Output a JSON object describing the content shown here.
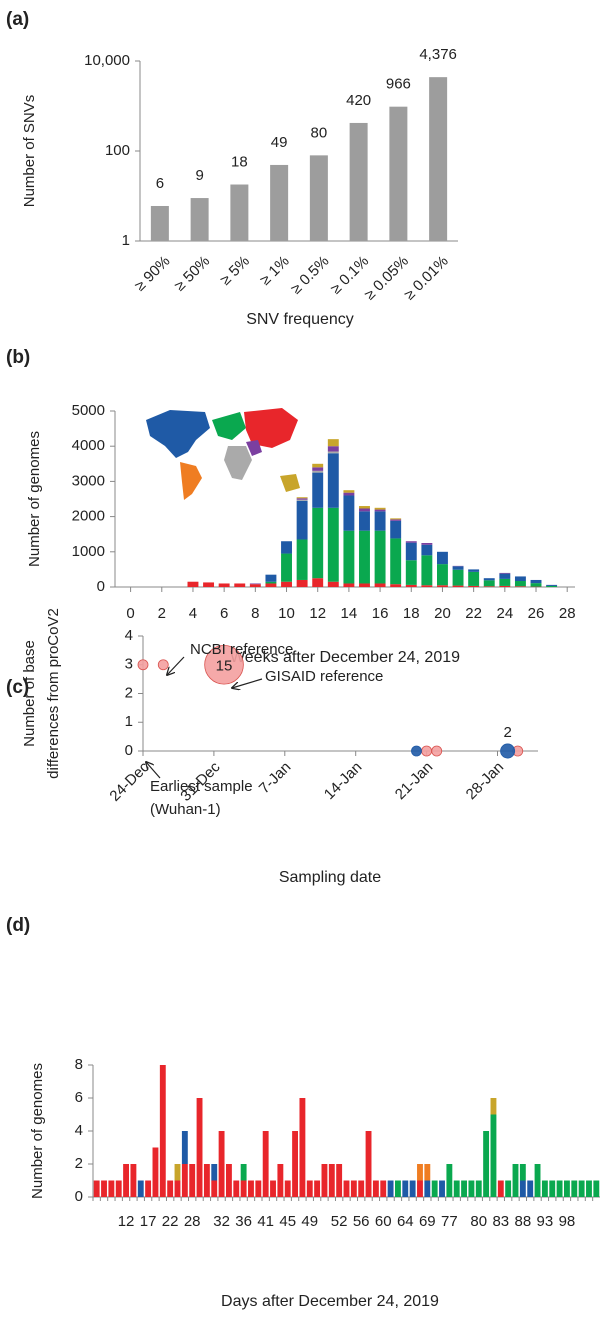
{
  "chart_data": [
    {
      "type": "bar",
      "label": "(a)",
      "ylabel": "Number of SNVs",
      "xlabel": "SNV frequency",
      "categories": [
        "≥ 90%",
        "≥ 50%",
        "≥ 5%",
        "≥ 1%",
        "≥ 0.5%",
        "≥ 0.1%",
        "≥ 0.05%",
        "≥ 0.01%"
      ],
      "values": [
        6,
        9,
        18,
        49,
        80,
        420,
        966,
        4376
      ],
      "value_labels": [
        "6",
        "9",
        "18",
        "49",
        "80",
        "420",
        "966",
        "4,376"
      ],
      "color": "#9d9d9d",
      "yscale": "log",
      "ylim": [
        1,
        10000
      ],
      "yticks": [
        1,
        100,
        {
          "value": 10000,
          "label": "10,000"
        }
      ]
    },
    {
      "type": "stacked_bar",
      "label": "(b)",
      "ylabel": "Number of genomes",
      "xlabel": "Weeks after December 24, 2019",
      "x": [
        4,
        5,
        6,
        7,
        8,
        9,
        10,
        11,
        12,
        13,
        14,
        15,
        16,
        17,
        18,
        19,
        20,
        21,
        22,
        23,
        24,
        25,
        26,
        27
      ],
      "series": [
        {
          "color": "#e8262b",
          "values": [
            150,
            130,
            100,
            100,
            80,
            100,
            150,
            200,
            250,
            150,
            100,
            100,
            100,
            80,
            60,
            50,
            50,
            40,
            30,
            20,
            30,
            20,
            10,
            0
          ]
        },
        {
          "color": "#0aa84f",
          "values": [
            0,
            0,
            0,
            0,
            0,
            50,
            800,
            1150,
            2000,
            2100,
            1500,
            1500,
            1500,
            1300,
            700,
            850,
            600,
            450,
            400,
            170,
            200,
            150,
            100,
            30
          ]
        },
        {
          "color": "#1f5aa6",
          "values": [
            0,
            0,
            0,
            0,
            0,
            200,
            350,
            1100,
            1000,
            1550,
            1000,
            550,
            550,
            500,
            500,
            300,
            350,
            100,
            70,
            60,
            150,
            130,
            90,
            30
          ]
        },
        {
          "color": "#aaaaaa",
          "values": [
            0,
            0,
            0,
            0,
            0,
            0,
            0,
            30,
            50,
            50,
            0,
            0,
            0,
            0,
            0,
            0,
            0,
            0,
            0,
            0,
            0,
            0,
            0,
            0
          ]
        },
        {
          "color": "#7b3fa0",
          "values": [
            0,
            0,
            0,
            0,
            20,
            0,
            0,
            40,
            100,
            150,
            80,
            80,
            50,
            40,
            40,
            50,
            0,
            10,
            0,
            0,
            20,
            0,
            0,
            0
          ]
        },
        {
          "color": "#c8a52b",
          "values": [
            0,
            0,
            0,
            0,
            0,
            0,
            0,
            30,
            100,
            200,
            70,
            70,
            50,
            30,
            0,
            0,
            0,
            0,
            0,
            0,
            0,
            0,
            0,
            0
          ]
        }
      ],
      "xlim": [
        -1,
        28.5
      ],
      "xticks": [
        0,
        2,
        4,
        6,
        8,
        10,
        12,
        14,
        16,
        18,
        20,
        22,
        24,
        26,
        28
      ],
      "ylim": [
        0,
        5000
      ],
      "yticks": [
        0,
        1000,
        2000,
        3000,
        4000,
        5000
      ]
    },
    {
      "type": "bubble",
      "label": "(c)",
      "ylabel": [
        "Number of base",
        "differences from proCoV2"
      ],
      "xlabel": "Sampling date",
      "series": [
        {
          "color": "#f4a0a0",
          "x": [
            "24-Dec",
            "26-Dec",
            "1-Jan",
            "21-Jan",
            "22-Jan",
            "30-Jan"
          ],
          "values": [
            3,
            3,
            3,
            0,
            0,
            0
          ],
          "sizes": [
            1,
            1,
            15,
            1,
            1,
            1
          ]
        },
        {
          "color": "#1f5aa6",
          "x": [
            "20-Jan",
            "29-Jan"
          ],
          "values": [
            0,
            0
          ],
          "sizes": [
            1,
            2
          ]
        }
      ],
      "annotations": [
        "NCBI reference",
        "GISAID reference",
        "Earliest sample",
        "(Wuhan-1)"
      ],
      "xlim": [
        "24-Dec",
        "1-Feb"
      ],
      "xticks": [
        "24-Dec",
        "31-Dec",
        "7-Jan",
        "14-Jan",
        "21-Jan",
        "28-Jan"
      ],
      "ylim": [
        0,
        4
      ],
      "yticks": [
        0,
        1,
        2,
        3,
        4
      ]
    },
    {
      "type": "stacked_bar",
      "label": "(d)",
      "ylabel": "Number of genomes",
      "xlabel": "Days after December 24, 2019",
      "categories": [
        null,
        null,
        null,
        null,
        12,
        null,
        null,
        17,
        null,
        null,
        22,
        null,
        null,
        28,
        null,
        null,
        null,
        32,
        null,
        null,
        36,
        null,
        null,
        41,
        null,
        null,
        45,
        null,
        null,
        49,
        null,
        null,
        null,
        52,
        null,
        null,
        56,
        null,
        null,
        60,
        null,
        null,
        64,
        null,
        null,
        69,
        null,
        null,
        77,
        null,
        null,
        null,
        80,
        null,
        null,
        83,
        null,
        null,
        88,
        null,
        null,
        93,
        null,
        null,
        98,
        null,
        null,
        null,
        null
      ],
      "series": [
        {
          "color": "#e8262b",
          "values": [
            1,
            1,
            1,
            1,
            2,
            2,
            0,
            1,
            3,
            8,
            1,
            1,
            2,
            2,
            6,
            2,
            1,
            4,
            2,
            1,
            1,
            1,
            1,
            4,
            1,
            2,
            1,
            4,
            6,
            1,
            1,
            2,
            2,
            2,
            1,
            1,
            1,
            4,
            1,
            1,
            0,
            0,
            0,
            0,
            1,
            0,
            0,
            0,
            0,
            0,
            0,
            0,
            0,
            0,
            0,
            1,
            0,
            0,
            0,
            0,
            0,
            0,
            0,
            0,
            0,
            0,
            0,
            0,
            0
          ]
        },
        {
          "color": "#1f5aa6",
          "values": [
            0,
            0,
            0,
            0,
            0,
            0,
            1,
            0,
            0,
            0,
            0,
            0,
            2,
            0,
            0,
            0,
            1,
            0,
            0,
            0,
            0,
            0,
            0,
            0,
            0,
            0,
            0,
            0,
            0,
            0,
            0,
            0,
            0,
            0,
            0,
            0,
            0,
            0,
            0,
            0,
            1,
            0,
            1,
            1,
            0,
            1,
            0,
            1,
            0,
            0,
            0,
            0,
            0,
            0,
            0,
            0,
            0,
            0,
            1,
            1,
            0,
            0,
            0,
            0,
            0,
            0,
            0,
            0,
            0
          ]
        },
        {
          "color": "#0aa84f",
          "values": [
            0,
            0,
            0,
            0,
            0,
            0,
            0,
            0,
            0,
            0,
            0,
            0,
            0,
            0,
            0,
            0,
            0,
            0,
            0,
            0,
            1,
            0,
            0,
            0,
            0,
            0,
            0,
            0,
            0,
            0,
            0,
            0,
            0,
            0,
            0,
            0,
            0,
            0,
            0,
            0,
            0,
            1,
            0,
            0,
            0,
            0,
            1,
            0,
            2,
            1,
            1,
            1,
            1,
            4,
            5,
            0,
            1,
            2,
            1,
            0,
            2,
            1,
            1,
            1,
            1,
            1,
            1,
            1,
            1
          ]
        },
        {
          "color": "#c8a52b",
          "values": [
            0,
            0,
            0,
            0,
            0,
            0,
            0,
            0,
            0,
            0,
            0,
            1,
            0,
            0,
            0,
            0,
            0,
            0,
            0,
            0,
            0,
            0,
            0,
            0,
            0,
            0,
            0,
            0,
            0,
            0,
            0,
            0,
            0,
            0,
            0,
            0,
            0,
            0,
            0,
            0,
            0,
            0,
            0,
            0,
            0,
            0,
            0,
            0,
            0,
            0,
            0,
            0,
            0,
            0,
            1,
            0,
            0,
            0,
            0,
            0,
            0,
            0,
            0,
            0,
            0,
            0,
            0,
            0,
            0
          ]
        },
        {
          "color": "#ef7d22",
          "values": [
            0,
            0,
            0,
            0,
            0,
            0,
            0,
            0,
            0,
            0,
            0,
            0,
            0,
            0,
            0,
            0,
            0,
            0,
            0,
            0,
            0,
            0,
            0,
            0,
            0,
            0,
            0,
            0,
            0,
            0,
            0,
            0,
            0,
            0,
            0,
            0,
            0,
            0,
            0,
            0,
            0,
            0,
            0,
            0,
            1,
            1,
            0,
            0,
            0,
            0,
            0,
            0,
            0,
            0,
            0,
            0,
            0,
            0,
            0,
            0,
            0,
            0,
            0,
            0,
            0,
            0,
            0,
            0,
            0
          ]
        }
      ],
      "ylim": [
        0,
        8
      ],
      "yticks": [
        0,
        2,
        4,
        6,
        8
      ]
    }
  ]
}
